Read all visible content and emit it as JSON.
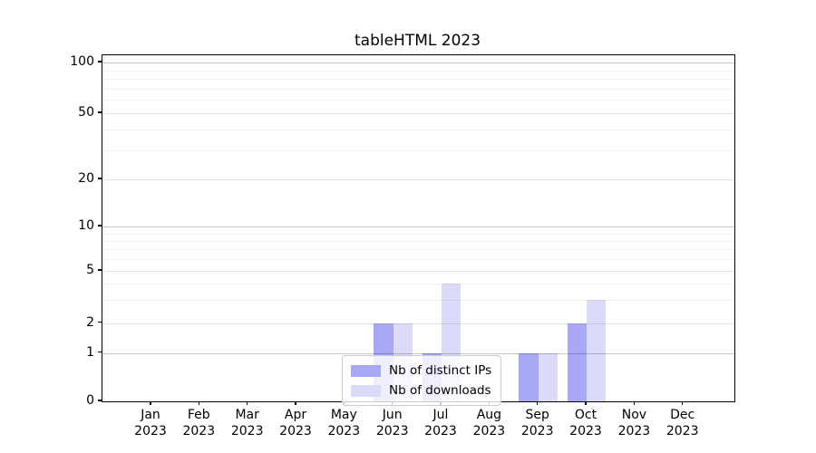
{
  "chart_data": {
    "type": "bar",
    "title": "tableHTML 2023",
    "x_axis": {
      "months": [
        "Jan",
        "Feb",
        "Mar",
        "Apr",
        "May",
        "Jun",
        "Jul",
        "Aug",
        "Sep",
        "Oct",
        "Nov",
        "Dec"
      ],
      "year": "2023"
    },
    "series": [
      {
        "name": "Nb of distinct IPs",
        "color": "#a8a8f5",
        "values": [
          0,
          0,
          0,
          0,
          0,
          2,
          1,
          0,
          1,
          2,
          0,
          0
        ]
      },
      {
        "name": "Nb of downloads",
        "color": "#dbdbf8",
        "values": [
          0,
          0,
          0,
          0,
          0,
          2,
          4,
          0,
          1,
          3,
          0,
          0
        ]
      }
    ],
    "y_axis": {
      "scale": "log-like",
      "tick_values": [
        0,
        1,
        2,
        5,
        10,
        20,
        50,
        100
      ],
      "tick_labels": [
        "0",
        "1",
        "2",
        "5",
        "10",
        "20",
        "50",
        "100"
      ],
      "anchor_fractions": {
        "0": 0,
        "1": 0.14,
        "2": 0.2264,
        "5": 0.377,
        "10": 0.5052,
        "20": 0.6414,
        "50": 0.8325,
        "100": 0.9791
      },
      "decade_gridlines": [
        1,
        10,
        100
      ],
      "mid_gridlines": [
        2,
        5,
        20,
        50
      ],
      "minor_gridlines": [
        3,
        4,
        6,
        7,
        8,
        9,
        30,
        40,
        60,
        70,
        80,
        90
      ]
    },
    "legend_position": "lower center",
    "grid": true
  }
}
